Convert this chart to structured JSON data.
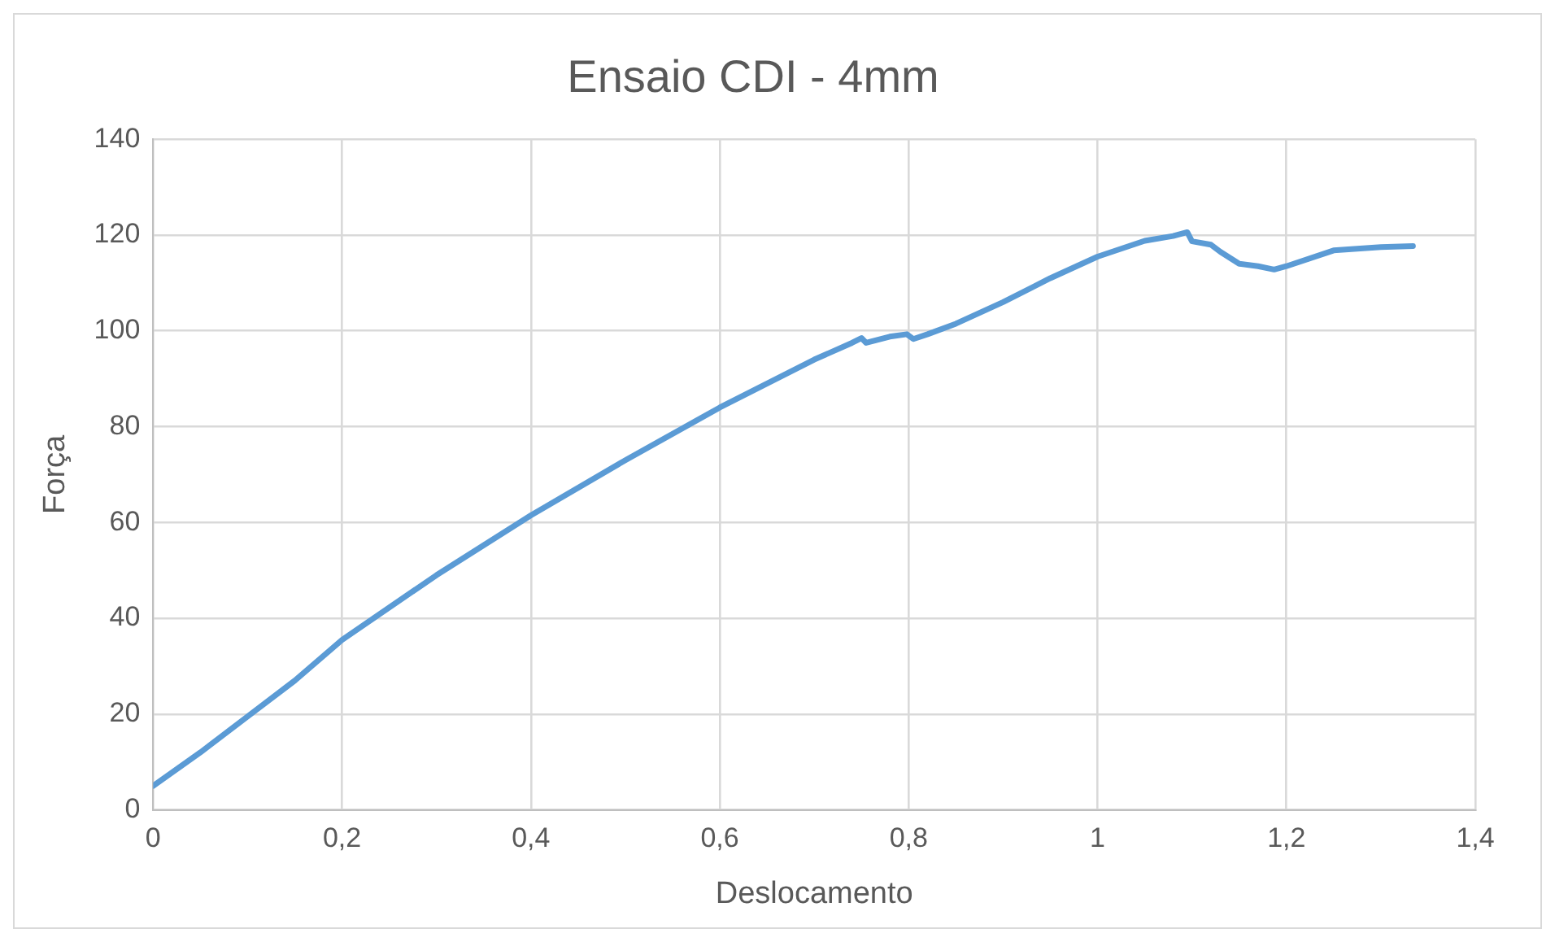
{
  "chart_data": {
    "type": "line",
    "title": "Ensaio CDI - 4mm",
    "xlabel": "Deslocamento",
    "ylabel": "Força",
    "series": [
      {
        "color": "#5b9bd5",
        "x": [
          0,
          0.05,
          0.1,
          0.15,
          0.2,
          0.3,
          0.4,
          0.5,
          0.6,
          0.7,
          0.74,
          0.75,
          0.755,
          0.78,
          0.798,
          0.805,
          0.82,
          0.85,
          0.9,
          0.95,
          1.0,
          1.05,
          1.08,
          1.095,
          1.1,
          1.12,
          1.13,
          1.15,
          1.17,
          1.187,
          1.2,
          1.25,
          1.3,
          1.334
        ],
        "values": [
          5,
          12,
          19.5,
          27,
          35.5,
          49,
          61.5,
          73,
          84,
          94,
          97.5,
          98.5,
          97.5,
          98.8,
          99.3,
          98.3,
          99.3,
          101.5,
          106,
          111,
          115.5,
          118.8,
          119.8,
          120.6,
          118.7,
          118,
          116.5,
          114,
          113.5,
          112.8,
          113.5,
          116.8,
          117.5,
          117.7
        ]
      }
    ],
    "xlim": [
      0,
      1.4
    ],
    "xticks": [
      0,
      {
        "value": 0.2,
        "label": "0,2"
      },
      {
        "value": 0.4,
        "label": "0,4"
      },
      {
        "value": 0.6,
        "label": "0,6"
      },
      {
        "value": 0.8,
        "label": "0,8"
      },
      1,
      {
        "value": 1.2,
        "label": "1,2"
      },
      {
        "value": 1.4,
        "label": "1,4"
      }
    ],
    "ylim": [
      0,
      140
    ],
    "yticks": [
      0,
      20,
      40,
      60,
      80,
      100,
      120,
      140
    ],
    "grid": true,
    "legend": false,
    "marker": "none",
    "line_style": "solid"
  }
}
